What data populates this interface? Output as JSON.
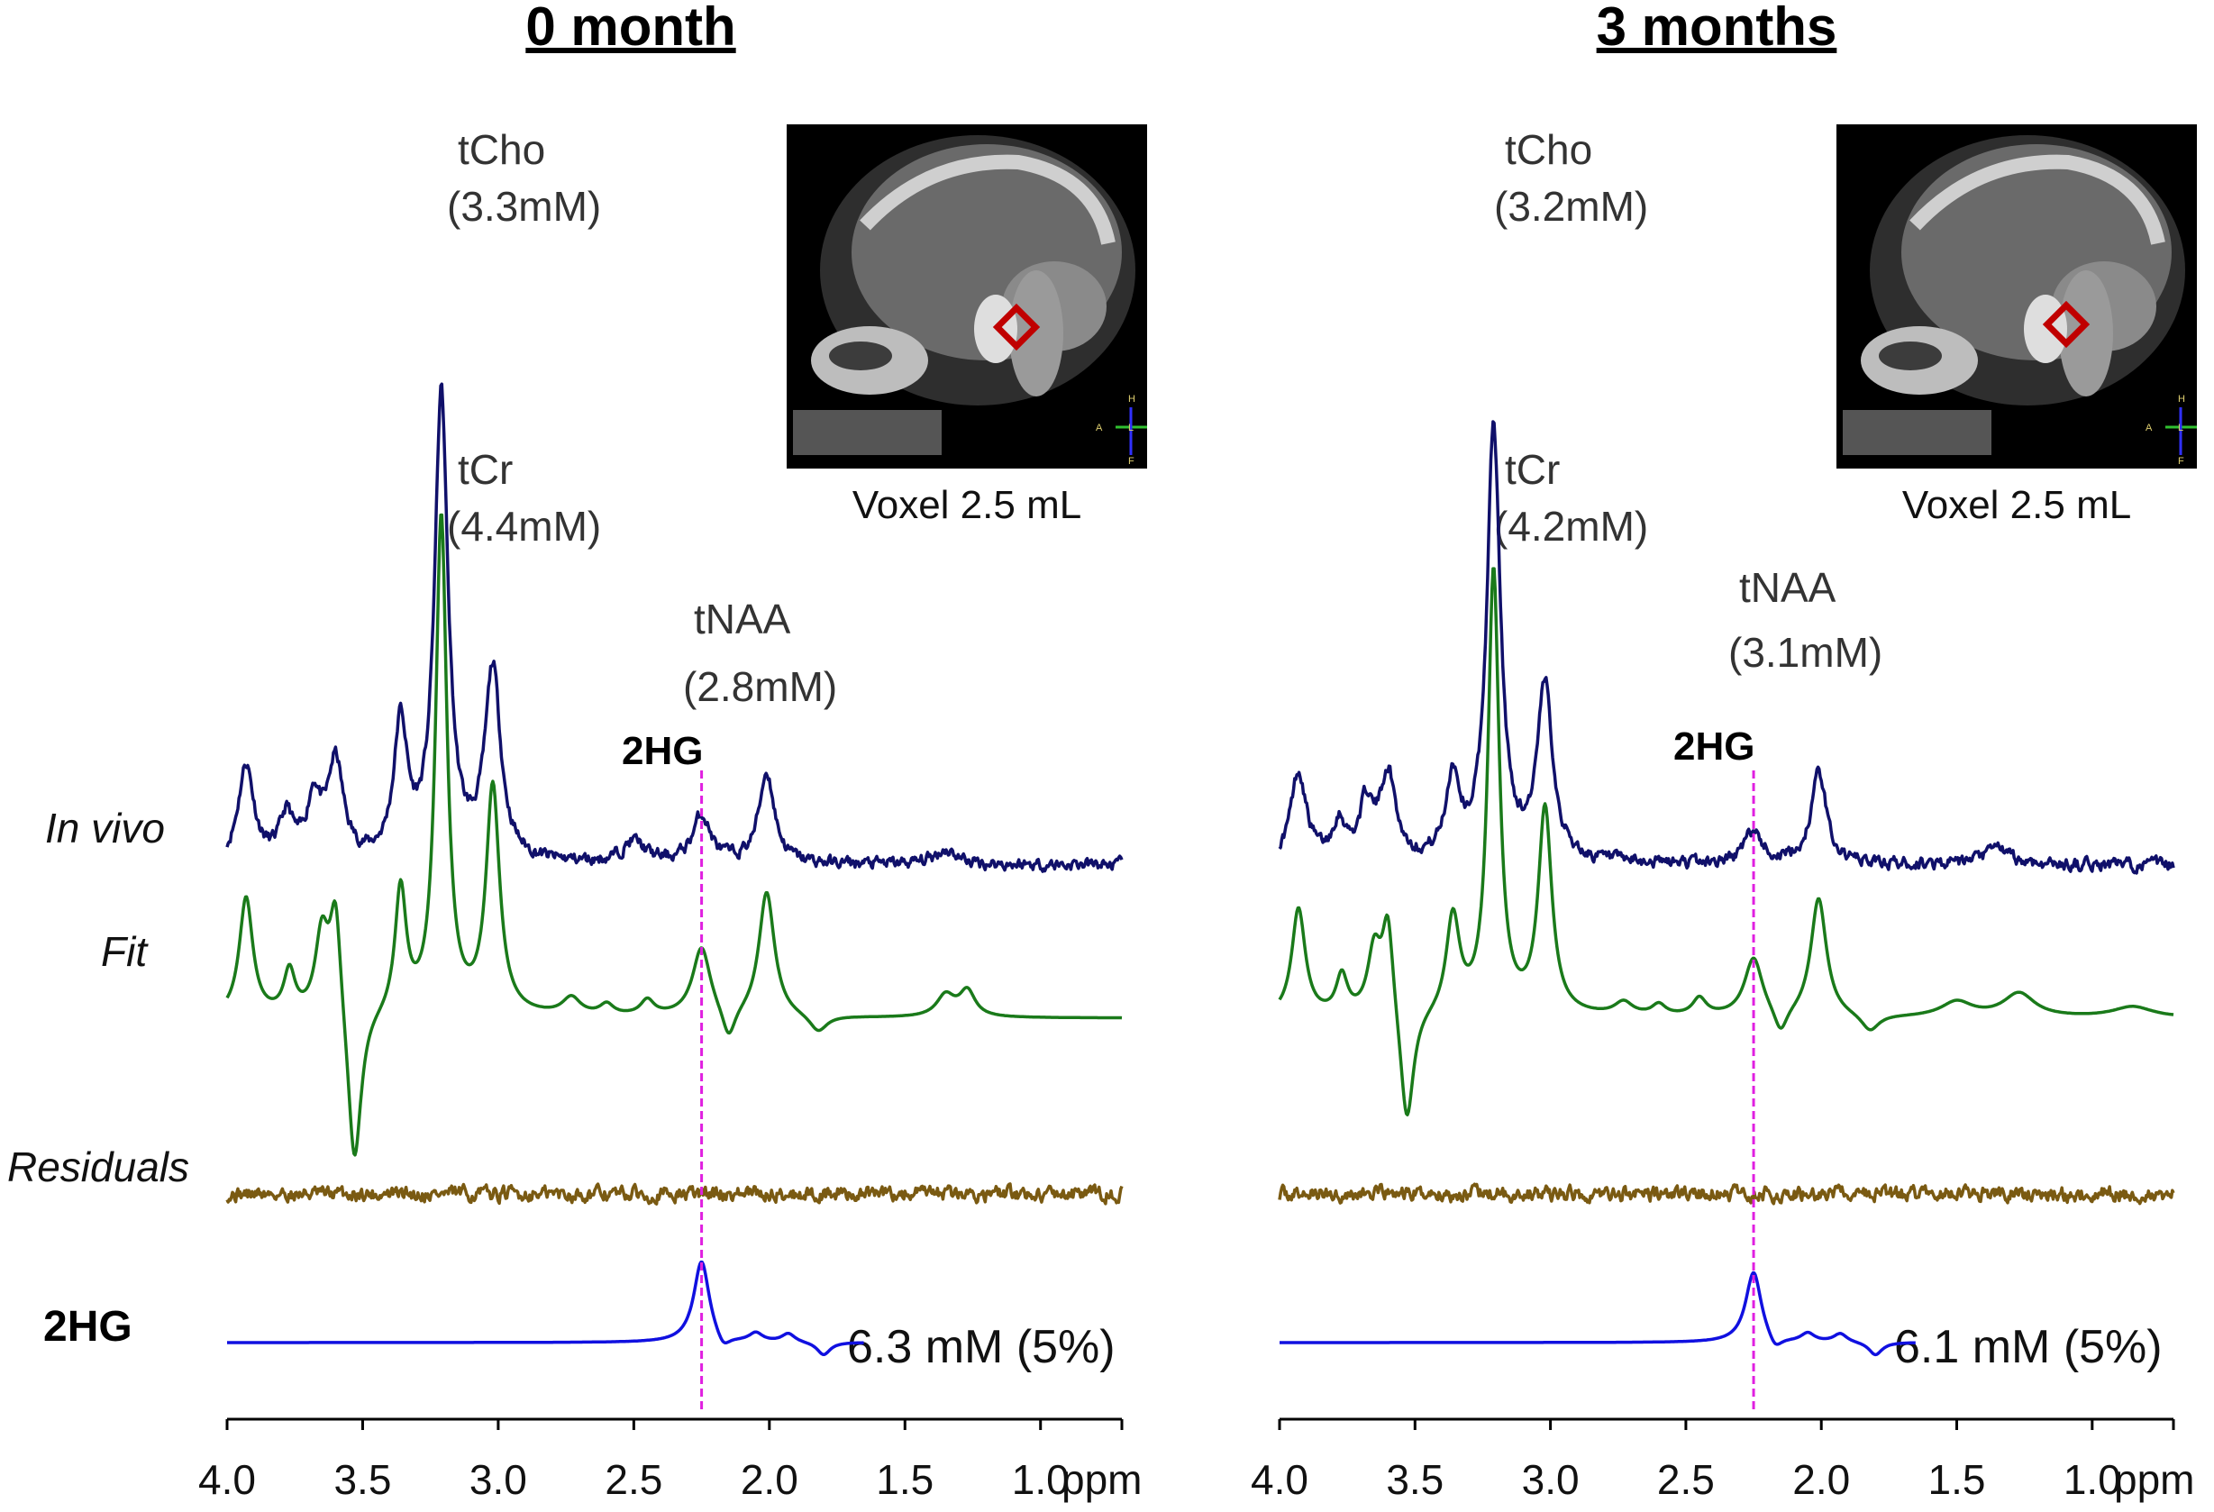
{
  "figure": {
    "row_labels": {
      "in_vivo": "In vivo",
      "fit": "Fit",
      "residuals": "Residuals",
      "hg": "2HG"
    }
  },
  "colors": {
    "in_vivo": "#10106a",
    "fit": "#1a7a1a",
    "residuals": "#7a5a12",
    "hg": "#1010e0",
    "marker": "#e020e0",
    "roi": "#c00000"
  },
  "chart_data": [
    {
      "type": "line",
      "title": "0 month",
      "xlabel": "ppm",
      "xlim": [
        4.0,
        0.7
      ],
      "x_reversed": true,
      "x_ticks": [
        "4.0",
        "3.5",
        "3.0",
        "2.5",
        "2.0",
        "1.5",
        "1.0"
      ],
      "x_tick_values": [
        4.0,
        3.5,
        3.0,
        2.5,
        2.0,
        1.5,
        1.0
      ],
      "marker_ppm": 2.25,
      "peaks": {
        "tcho": {
          "name": "tCho",
          "conc": "(3.3mM)",
          "ppm": 3.2
        },
        "tcr": {
          "name": "tCr",
          "conc": "(4.4mM)",
          "ppm": 3.02
        },
        "tnaa": {
          "name": "tNAA",
          "conc": "(2.8mM)",
          "ppm": 2.01
        },
        "hg_peak": {
          "name": "2HG",
          "ppm": 2.25
        }
      },
      "hg_result": "6.3 mM (5%)",
      "voxel_label": "Voxel 2.5 mL",
      "mri_orientation": {
        "top": "H",
        "left": "A",
        "center": "L",
        "bottom": "F"
      },
      "series": [
        {
          "name": "In vivo",
          "color": "#10106a",
          "peaks": [
            [
              3.93,
              0.45,
              0.035
            ],
            [
              3.78,
              0.2,
              0.03
            ],
            [
              3.68,
              0.28,
              0.03
            ],
            [
              3.6,
              0.45,
              0.035
            ],
            [
              3.36,
              0.62,
              0.03
            ],
            [
              3.21,
              2.15,
              0.03
            ],
            [
              3.02,
              0.88,
              0.035
            ],
            [
              2.5,
              0.1,
              0.05
            ],
            [
              2.25,
              0.22,
              0.04
            ],
            [
              2.01,
              0.42,
              0.035
            ],
            [
              1.35,
              0.07,
              0.05
            ]
          ],
          "noise": 0.05,
          "ppm_end": 0.7,
          "seed": 11
        },
        {
          "name": "Fit",
          "color": "#1a7a1a",
          "peaks": [
            [
              3.93,
              0.55,
              0.03
            ],
            [
              3.77,
              0.2,
              0.025
            ],
            [
              3.65,
              0.38,
              0.03
            ],
            [
              3.6,
              0.52,
              0.025
            ],
            [
              3.53,
              -0.75,
              0.03
            ],
            [
              3.36,
              0.58,
              0.025
            ],
            [
              3.21,
              2.3,
              0.025
            ],
            [
              3.02,
              1.05,
              0.03
            ],
            [
              2.73,
              0.08,
              0.04
            ],
            [
              2.6,
              0.05,
              0.03
            ],
            [
              2.45,
              0.07,
              0.03
            ],
            [
              2.25,
              0.32,
              0.04
            ],
            [
              2.15,
              -0.15,
              0.03
            ],
            [
              2.01,
              0.58,
              0.035
            ],
            [
              1.82,
              -0.08,
              0.04
            ],
            [
              1.35,
              0.1,
              0.04
            ],
            [
              1.27,
              0.12,
              0.035
            ]
          ],
          "noise": 0,
          "ppm_end": 0.7,
          "seed": 0
        },
        {
          "name": "Residuals",
          "color": "#7a5a12",
          "peaks": [],
          "noise": 0.06,
          "ppm_end": 0.7,
          "seed": 31
        },
        {
          "name": "2HG",
          "color": "#1010e0",
          "peaks": [
            [
              2.25,
              0.38,
              0.035
            ],
            [
              2.17,
              -0.06,
              0.03
            ],
            [
              2.05,
              0.04,
              0.03
            ],
            [
              1.93,
              0.04,
              0.03
            ],
            [
              1.8,
              -0.06,
              0.03
            ]
          ],
          "noise": 0,
          "ppm_end": 1.65,
          "seed": 0
        }
      ]
    },
    {
      "type": "line",
      "title": "3 months",
      "xlabel": "ppm",
      "xlim": [
        4.0,
        0.7
      ],
      "x_reversed": true,
      "x_ticks": [
        "4.0",
        "3.5",
        "3.0",
        "2.5",
        "2.0",
        "1.5",
        "1.0"
      ],
      "x_tick_values": [
        4.0,
        3.5,
        3.0,
        2.5,
        2.0,
        1.5,
        1.0
      ],
      "marker_ppm": 2.25,
      "peaks": {
        "tcho": {
          "name": "tCho",
          "conc": "(3.2mM)",
          "ppm": 3.2
        },
        "tcr": {
          "name": "tCr",
          "conc": "(4.2mM)",
          "ppm": 3.02
        },
        "tnaa": {
          "name": "tNAA",
          "conc": "(3.1mM)",
          "ppm": 2.01
        },
        "hg_peak": {
          "name": "2HG",
          "ppm": 2.25
        }
      },
      "hg_result": "6.1 mM (5%)",
      "voxel_label": "Voxel 2.5 mL",
      "mri_orientation": {
        "top": "H",
        "left": "A",
        "center": "L",
        "bottom": "F"
      },
      "series": [
        {
          "name": "In vivo",
          "color": "#10106a",
          "peaks": [
            [
              3.93,
              0.42,
              0.035
            ],
            [
              3.78,
              0.18,
              0.03
            ],
            [
              3.68,
              0.25,
              0.03
            ],
            [
              3.6,
              0.4,
              0.035
            ],
            [
              3.36,
              0.38,
              0.03
            ],
            [
              3.21,
              2.0,
              0.03
            ],
            [
              3.02,
              0.8,
              0.035
            ],
            [
              2.25,
              0.15,
              0.04
            ],
            [
              2.01,
              0.42,
              0.035
            ],
            [
              1.35,
              0.08,
              0.05
            ]
          ],
          "noise": 0.05,
          "ppm_end": 0.7,
          "seed": 17
        },
        {
          "name": "Fit",
          "color": "#1a7a1a",
          "peaks": [
            [
              3.93,
              0.5,
              0.03
            ],
            [
              3.77,
              0.18,
              0.025
            ],
            [
              3.65,
              0.3,
              0.03
            ],
            [
              3.6,
              0.45,
              0.025
            ],
            [
              3.53,
              -0.55,
              0.03
            ],
            [
              3.36,
              0.45,
              0.03
            ],
            [
              3.21,
              2.05,
              0.025
            ],
            [
              3.02,
              0.95,
              0.03
            ],
            [
              2.73,
              0.06,
              0.04
            ],
            [
              2.6,
              0.05,
              0.03
            ],
            [
              2.45,
              0.08,
              0.03
            ],
            [
              2.25,
              0.27,
              0.04
            ],
            [
              2.15,
              -0.12,
              0.03
            ],
            [
              2.01,
              0.55,
              0.035
            ],
            [
              1.82,
              -0.08,
              0.04
            ],
            [
              1.5,
              0.07,
              0.07
            ],
            [
              1.27,
              0.11,
              0.07
            ],
            [
              0.85,
              0.05,
              0.09
            ]
          ],
          "noise": 0,
          "ppm_end": 0.7,
          "seed": 0
        },
        {
          "name": "Residuals",
          "color": "#7a5a12",
          "peaks": [],
          "noise": 0.06,
          "ppm_end": 0.7,
          "seed": 37
        },
        {
          "name": "2HG",
          "color": "#1010e0",
          "peaks": [
            [
              2.25,
              0.33,
              0.035
            ],
            [
              2.17,
              -0.06,
              0.03
            ],
            [
              2.05,
              0.04,
              0.03
            ],
            [
              1.93,
              0.04,
              0.03
            ],
            [
              1.8,
              -0.06,
              0.03
            ]
          ],
          "noise": 0,
          "ppm_end": 1.65,
          "seed": 0
        }
      ]
    }
  ]
}
